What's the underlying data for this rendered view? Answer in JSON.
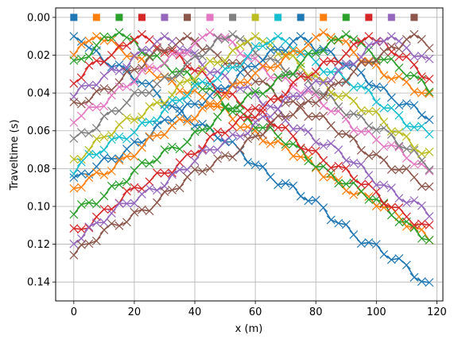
{
  "chart_data": {
    "type": "scatter",
    "xlabel": "x (m)",
    "ylabel": "Traveltime (s)",
    "xlim": [
      -6,
      122
    ],
    "ylim": [
      0.15,
      -0.005
    ],
    "y_inverted": true,
    "grid": true,
    "xticks": [
      0,
      20,
      40,
      60,
      80,
      100,
      120
    ],
    "yticks": [
      0.0,
      0.02,
      0.04,
      0.06,
      0.08,
      0.1,
      0.12,
      0.14
    ],
    "xtick_labels": [
      "0",
      "20",
      "40",
      "60",
      "80",
      "100",
      "120"
    ],
    "ytick_labels": [
      "0.00",
      "0.02",
      "0.04",
      "0.06",
      "0.08",
      "0.10",
      "0.12",
      "0.14"
    ],
    "color_cycle": [
      "#1f77b4",
      "#ff7f0e",
      "#2ca02c",
      "#d62728",
      "#9467bd",
      "#8c564b",
      "#e377c2",
      "#7f7f7f",
      "#bcbd22",
      "#17becf"
    ],
    "source_marker": "square",
    "receiver_marker": "x",
    "sources_x": [
      0,
      7.5,
      15,
      22.5,
      30,
      37.5,
      45,
      52.5,
      60,
      67.5,
      75,
      82.5,
      90,
      97.5,
      105,
      112.5
    ],
    "sources_y": [
      0,
      0,
      0,
      0,
      0,
      0,
      0,
      0,
      0,
      0,
      0,
      0,
      0,
      0,
      0,
      0
    ],
    "receivers_x": [
      0,
      2.5,
      5,
      7.5,
      10,
      12.5,
      15,
      17.5,
      20,
      22.5,
      25,
      27.5,
      30,
      32.5,
      35,
      37.5,
      40,
      42.5,
      45,
      47.5,
      50,
      52.5,
      55,
      57.5,
      60,
      62.5,
      65,
      67.5,
      70,
      72.5,
      75,
      77.5,
      80,
      82.5,
      85,
      87.5,
      90,
      92.5,
      95,
      97.5,
      100,
      102.5,
      105,
      107.5,
      110,
      112.5,
      115,
      117.5
    ],
    "traveltime_near": [
      0.01,
      0.01,
      0.008,
      0.009,
      0.01,
      0.01,
      0.008,
      0.009,
      0.01,
      0.01,
      0.01,
      0.008,
      0.009,
      0.01,
      0.01,
      0.009
    ],
    "traveltime_slope": [
      0.00112,
      0.00096,
      0.00106,
      0.00109,
      0.00108,
      0.00101,
      0.00102,
      0.00105,
      0.00108,
      0.00104,
      0.00103,
      0.00101,
      0.00105,
      0.00106,
      0.00102,
      0.00103
    ]
  }
}
